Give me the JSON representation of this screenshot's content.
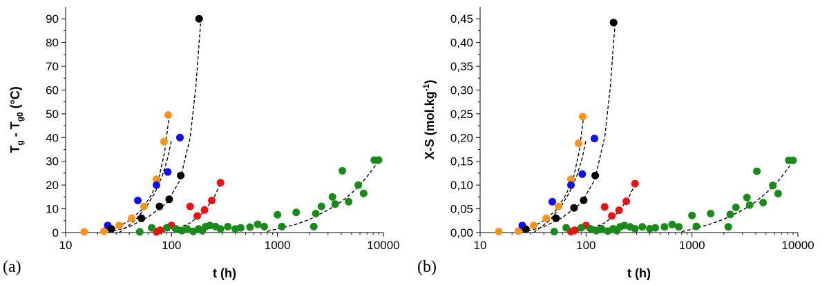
{
  "colors": {
    "orange": "#f7941d",
    "blue": "#1010ee",
    "black": "#000000",
    "red": "#ee1111",
    "green": "#1a8a1a"
  },
  "chart_data": [
    {
      "panel_label": "(a)",
      "type": "scatter",
      "xscale": "log",
      "xlim": [
        10,
        10000
      ],
      "ylim": [
        0,
        95
      ],
      "xticks": [
        "10",
        "100",
        "1000",
        "10000"
      ],
      "yticks": [
        "0",
        "10",
        "20",
        "30",
        "40",
        "50",
        "60",
        "70",
        "80",
        "90"
      ],
      "xlabel": "t (h)",
      "ylabel": {
        "main": "T",
        "sub1": "g",
        "mid": " - T",
        "sub2": "g0",
        "end": " (°C)"
      },
      "series": [
        {
          "color": "orange",
          "x": [
            15,
            23,
            32,
            42,
            55,
            72,
            85,
            93
          ],
          "y": [
            0.3,
            0.5,
            3,
            6,
            11,
            22.5,
            38.3,
            49.5
          ],
          "fit": {
            "x": [
              22,
              30,
              40,
              52,
              64,
              76,
              86,
              95
            ],
            "y": [
              0,
              2,
              5,
              9.5,
              15.5,
              23,
              34,
              49
            ]
          }
        },
        {
          "color": "blue",
          "x": [
            25,
            48,
            72,
            92,
            120
          ],
          "y": [
            3,
            13.5,
            20,
            25.5,
            40
          ],
          "fit": {
            "x": [
              32,
              45,
              58,
              70,
              82,
              92,
              100
            ],
            "y": [
              0,
              5,
              11,
              17,
              24,
              31.5,
              39
            ]
          }
        },
        {
          "color": "black",
          "x": [
            27,
            52,
            77,
            95,
            122,
            182
          ],
          "y": [
            1.5,
            6,
            11,
            14,
            24,
            90
          ],
          "fit": {
            "x": [
              25,
              40,
              60,
              90,
              120,
              150,
              170,
              182,
              188
            ],
            "y": [
              0,
              2.5,
              6.5,
              12.5,
              22,
              40,
              62,
              80,
              88
            ]
          }
        },
        {
          "color": "red",
          "x": [
            72,
            78,
            100,
            150,
            175,
            205,
            240,
            290
          ],
          "y": [
            0.3,
            1,
            3,
            11,
            7,
            9.5,
            13.5,
            21
          ],
          "fit": {
            "x": [
              80,
              110,
              150,
              200,
              250,
              300
            ],
            "y": [
              0.3,
              1.5,
              4,
              8.5,
              14.5,
              22
            ]
          }
        },
        {
          "color": "green",
          "x": [
            50,
            65,
            90,
            110,
            125,
            140,
            160,
            180,
            195,
            210,
            230,
            260,
            290,
            340,
            400,
            450,
            550,
            650,
            750,
            1000,
            1100,
            1500,
            2200,
            2300,
            2600,
            3300,
            3500,
            4100,
            4700,
            5800,
            6500,
            8200,
            9000
          ],
          "y": [
            0.3,
            2,
            2,
            1.5,
            0.8,
            1.5,
            0.5,
            1.5,
            0.8,
            2.5,
            3,
            2.5,
            1.5,
            2.5,
            1.5,
            2,
            2.3,
            3.5,
            2.5,
            7.5,
            2.5,
            8.5,
            2.5,
            8,
            11,
            15,
            12,
            26,
            13,
            20,
            16.5,
            30.5,
            30.5
          ],
          "fit": {
            "x": [
              800,
              1000,
              1500,
              2000,
              3000,
              4000,
              5000,
              6000,
              7000,
              8000,
              9000
            ],
            "y": [
              0.5,
              1.5,
              3.5,
              5.5,
              9.5,
              13,
              16.5,
              20,
              23.5,
              27,
              30
            ]
          }
        }
      ]
    },
    {
      "panel_label": "(b)",
      "type": "scatter",
      "xscale": "log",
      "xlim": [
        10,
        10000
      ],
      "ylim": [
        0,
        0.475
      ],
      "xticks": [
        "10",
        "100",
        "1000",
        "10000"
      ],
      "yticks": [
        "0,00",
        "0,05",
        "0,10",
        "0,15",
        "0,20",
        "0,25",
        "0,30",
        "0,35",
        "0,40",
        "0,45"
      ],
      "xlabel": "t (h)",
      "ylabel": {
        "main": "X-S (mol.kg",
        "sup": "-1",
        "end": ")"
      },
      "series": [
        {
          "color": "orange",
          "x": [
            15,
            23,
            32,
            42,
            55,
            72,
            85,
            93
          ],
          "y": [
            0.002,
            0.003,
            0.015,
            0.03,
            0.055,
            0.112,
            0.188,
            0.244
          ],
          "fit": {
            "x": [
              22,
              30,
              40,
              52,
              64,
              76,
              86,
              95
            ],
            "y": [
              0,
              0.01,
              0.025,
              0.047,
              0.078,
              0.115,
              0.17,
              0.245
            ]
          }
        },
        {
          "color": "blue",
          "x": [
            25,
            48,
            72,
            92,
            120
          ],
          "y": [
            0.015,
            0.065,
            0.1,
            0.123,
            0.198
          ],
          "fit": {
            "x": [
              32,
              45,
              58,
              70,
              82,
              92,
              100
            ],
            "y": [
              0,
              0.025,
              0.055,
              0.085,
              0.12,
              0.157,
              0.195
            ]
          }
        },
        {
          "color": "black",
          "x": [
            27,
            52,
            77,
            95,
            122,
            182
          ],
          "y": [
            0.007,
            0.03,
            0.052,
            0.068,
            0.12,
            0.442
          ],
          "fit": {
            "x": [
              25,
              40,
              60,
              90,
              120,
              150,
              170,
              182,
              188
            ],
            "y": [
              0,
              0.012,
              0.032,
              0.062,
              0.11,
              0.2,
              0.31,
              0.4,
              0.44
            ]
          }
        },
        {
          "color": "red",
          "x": [
            72,
            78,
            100,
            150,
            175,
            205,
            240,
            290
          ],
          "y": [
            0.002,
            0.005,
            0.015,
            0.054,
            0.035,
            0.047,
            0.066,
            0.103
          ],
          "fit": {
            "x": [
              80,
              110,
              150,
              200,
              250,
              300
            ],
            "y": [
              0.002,
              0.008,
              0.02,
              0.042,
              0.072,
              0.108
            ]
          }
        },
        {
          "color": "green",
          "x": [
            50,
            65,
            90,
            110,
            125,
            140,
            160,
            180,
            195,
            210,
            230,
            260,
            290,
            340,
            400,
            450,
            550,
            650,
            750,
            1000,
            1100,
            1500,
            2200,
            2300,
            2600,
            3300,
            3500,
            4100,
            4700,
            5800,
            6500,
            8200,
            9000
          ],
          "y": [
            0.002,
            0.01,
            0.01,
            0.008,
            0.004,
            0.008,
            0.003,
            0.008,
            0.004,
            0.012,
            0.015,
            0.012,
            0.008,
            0.012,
            0.008,
            0.01,
            0.012,
            0.017,
            0.012,
            0.036,
            0.013,
            0.04,
            0.012,
            0.038,
            0.053,
            0.074,
            0.058,
            0.129,
            0.063,
            0.099,
            0.082,
            0.152,
            0.152
          ],
          "fit": {
            "x": [
              800,
              1000,
              1500,
              2000,
              3000,
              4000,
              5000,
              6000,
              7000,
              8000,
              9000
            ],
            "y": [
              0.002,
              0.007,
              0.018,
              0.028,
              0.047,
              0.065,
              0.083,
              0.1,
              0.117,
              0.134,
              0.15
            ]
          }
        }
      ]
    }
  ]
}
